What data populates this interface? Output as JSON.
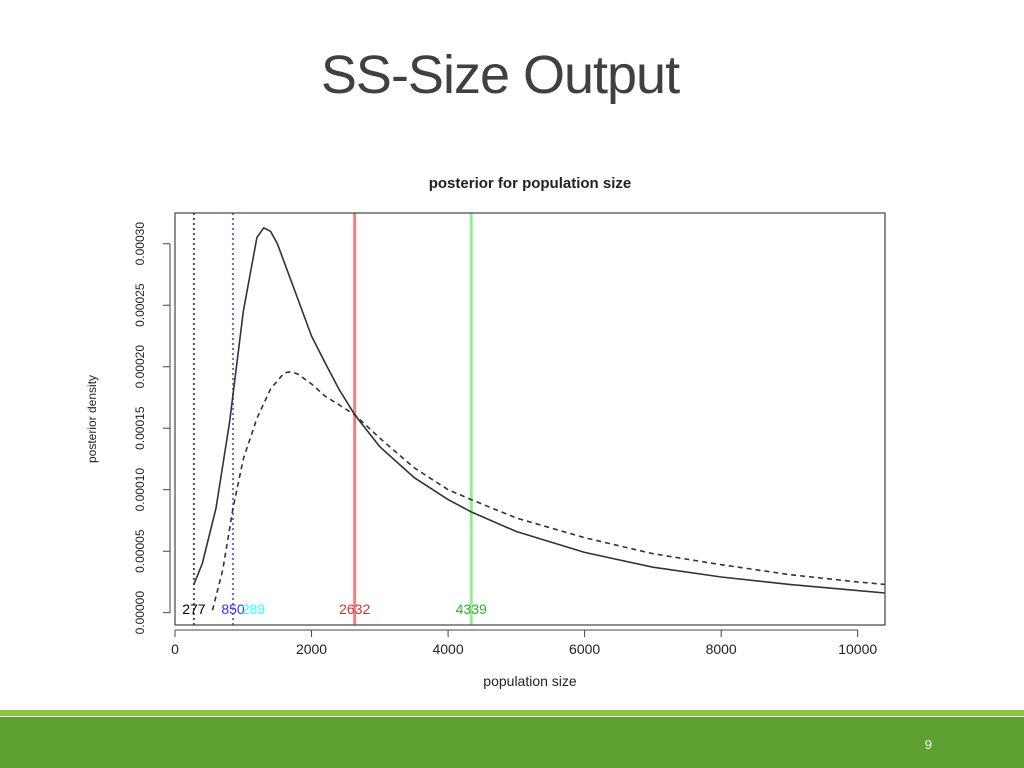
{
  "slide": {
    "title": "SS-Size Output",
    "page_number": "9"
  },
  "colors": {
    "footer_bar": "#5fa033",
    "footer_accent": "#8cc63f",
    "red_marker": "#f08080",
    "green_marker": "#90ee90",
    "blue_marker": "#3333ff",
    "cyan_label": "#33ffff"
  },
  "chart_data": {
    "type": "line",
    "title": "posterior for population size",
    "xlabel": "population size",
    "ylabel": "posterior density",
    "xlim": [
      0,
      10400
    ],
    "ylim": [
      -1e-05,
      0.000325
    ],
    "x_ticks": [
      0,
      2000,
      4000,
      6000,
      8000,
      10000
    ],
    "y_ticks": [
      0.0,
      5e-05,
      0.0001,
      0.00015,
      0.0002,
      0.00025,
      0.0003
    ],
    "x_tick_labels": [
      "0",
      "2000",
      "4000",
      "6000",
      "8000",
      "10000"
    ],
    "y_tick_labels": [
      "0.00000",
      "0.00005",
      "0.00010",
      "0.00015",
      "0.00020",
      "0.00025",
      "0.00030"
    ],
    "series": [
      {
        "style": "solid",
        "x": [
          277,
          400,
          600,
          800,
          1000,
          1200,
          1300,
          1400,
          1500,
          1600,
          1800,
          2000,
          2200,
          2400,
          2632,
          3000,
          3500,
          4000,
          4339,
          5000,
          6000,
          7000,
          8000,
          9000,
          10000,
          10400
        ],
        "y": [
          2.3e-05,
          4e-05,
          8.5e-05,
          0.000155,
          0.000245,
          0.000305,
          0.000313,
          0.00031,
          0.0003,
          0.000285,
          0.000255,
          0.000225,
          0.000203,
          0.000182,
          0.000161,
          0.000135,
          0.00011,
          9.2e-05,
          8.2e-05,
          6.6e-05,
          4.9e-05,
          3.7e-05,
          2.9e-05,
          2.3e-05,
          1.8e-05,
          1.6e-05
        ]
      },
      {
        "style": "dashed",
        "x": [
          550,
          700,
          850,
          1000,
          1200,
          1400,
          1600,
          1700,
          1800,
          2000,
          2200,
          2632,
          3000,
          3500,
          4000,
          4339,
          5000,
          6000,
          7000,
          8000,
          9000,
          10000,
          10400
        ],
        "y": [
          2e-06,
          3.5e-05,
          8.5e-05,
          0.000125,
          0.000158,
          0.000182,
          0.000195,
          0.000196,
          0.000194,
          0.000186,
          0.000176,
          0.000161,
          0.000142,
          0.000118,
          0.0001,
          9.2e-05,
          7.7e-05,
          6.1e-05,
          4.8e-05,
          3.9e-05,
          3.1e-05,
          2.5e-05,
          2.3e-05
        ]
      }
    ],
    "vertical_lines": [
      {
        "x": 277,
        "style": "dotted",
        "color": "#555555"
      },
      {
        "x": 850,
        "style": "dotted",
        "color": "#6666ff"
      },
      {
        "x": 2632,
        "style": "solid",
        "color": "#f08080"
      },
      {
        "x": 4339,
        "style": "solid",
        "color": "#90ee90"
      }
    ],
    "annotations": [
      {
        "text": "277",
        "x": 277,
        "color": "#000000"
      },
      {
        "text": "850",
        "x": 850,
        "color": "#3333ff"
      },
      {
        "text": "289",
        "x": 1150,
        "color": "#33ffff"
      },
      {
        "text": "2632",
        "x": 2632,
        "color": "#e03030"
      },
      {
        "text": "4339",
        "x": 4339,
        "color": "#30b030"
      }
    ],
    "grid": false,
    "legend": "none"
  }
}
